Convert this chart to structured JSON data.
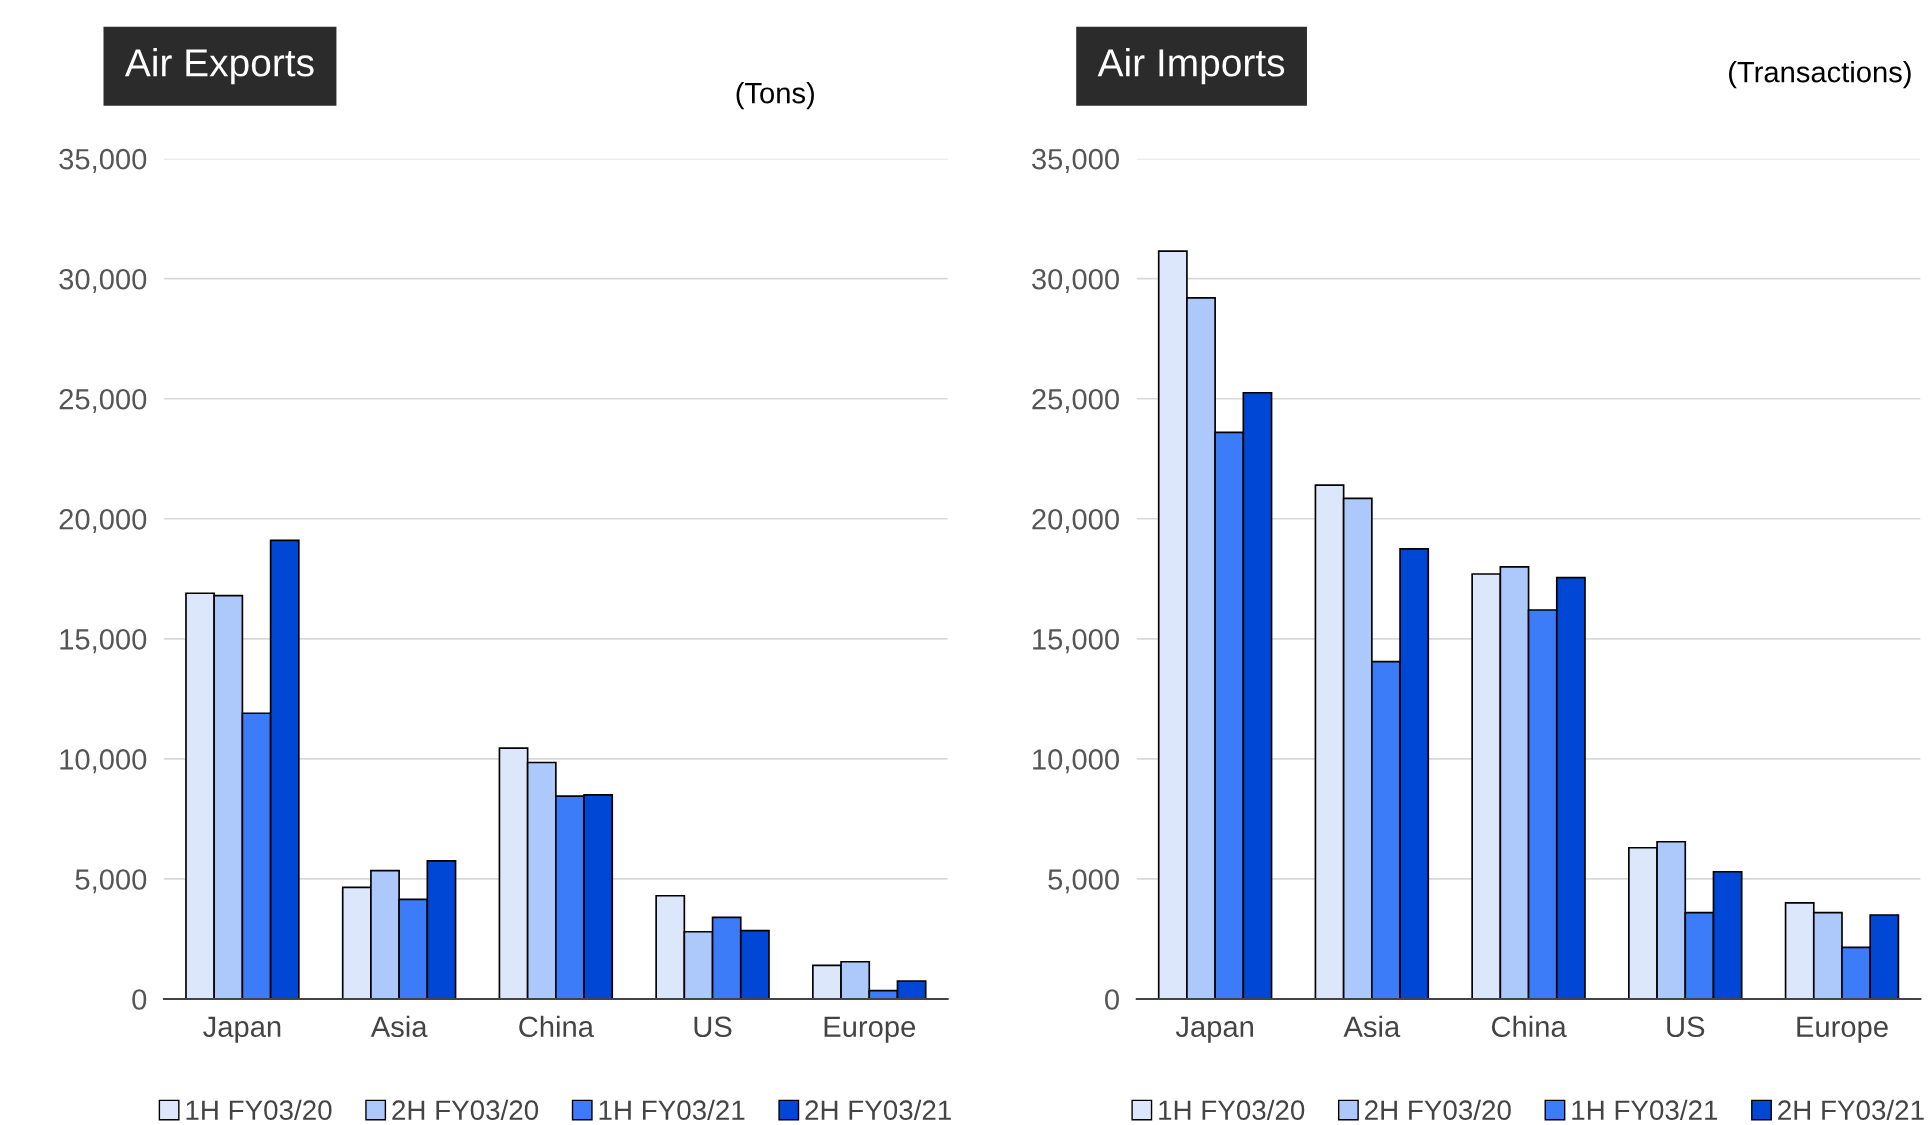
{
  "chart_data": [
    {
      "type": "bar",
      "title": "Air Exports",
      "annotations": [
        "(Tons)"
      ],
      "categories": [
        "Japan",
        "Asia",
        "China",
        "US",
        "Europe"
      ],
      "ylim": [
        0,
        35000
      ],
      "yticks": [
        {
          "value": 0,
          "label": "0"
        },
        {
          "value": 5000,
          "label": "5,000"
        },
        {
          "value": 10000,
          "label": "10,000"
        },
        {
          "value": 15000,
          "label": "15,000"
        },
        {
          "value": 20000,
          "label": "20,000"
        },
        {
          "value": 25000,
          "label": "25,000"
        },
        {
          "value": 30000,
          "label": "30,000"
        },
        {
          "value": 35000,
          "label": "35,000"
        }
      ],
      "grid": "y",
      "legend": "bottom",
      "series": [
        {
          "name": "1H FY03/20",
          "color": "#dde7fc",
          "values": [
            16900,
            4650,
            10450,
            4300,
            1400
          ]
        },
        {
          "name": "2H FY03/20",
          "color": "#adc8fb",
          "values": [
            16800,
            5350,
            9850,
            2800,
            1550
          ]
        },
        {
          "name": "1H FY03/21",
          "color": "#3c7cf8",
          "values": [
            11900,
            4150,
            8450,
            3400,
            350
          ]
        },
        {
          "name": "2H FY03/21",
          "color": "#0047d6",
          "values": [
            19100,
            5750,
            8500,
            2850,
            750
          ]
        }
      ]
    },
    {
      "type": "bar",
      "title": "Air Imports",
      "annotations": [
        "(Transactions)"
      ],
      "categories": [
        "Japan",
        "Asia",
        "China",
        "US",
        "Europe"
      ],
      "ylim": [
        0,
        35000
      ],
      "yticks": [
        {
          "value": 0,
          "label": "0"
        },
        {
          "value": 5000,
          "label": "5,000"
        },
        {
          "value": 10000,
          "label": "10,000"
        },
        {
          "value": 15000,
          "label": "15,000"
        },
        {
          "value": 20000,
          "label": "20,000"
        },
        {
          "value": 25000,
          "label": "25,000"
        },
        {
          "value": 30000,
          "label": "30,000"
        },
        {
          "value": 35000,
          "label": "35,000"
        }
      ],
      "grid": "y",
      "legend": "bottom",
      "series": [
        {
          "name": "1H FY03/20",
          "color": "#dde7fc",
          "values": [
            31150,
            21400,
            17700,
            6300,
            4000
          ]
        },
        {
          "name": "2H FY03/20",
          "color": "#adc8fb",
          "values": [
            29200,
            20850,
            18000,
            6550,
            3600
          ]
        },
        {
          "name": "1H FY03/21",
          "color": "#3c7cf8",
          "values": [
            23600,
            14050,
            16200,
            3600,
            2150
          ]
        },
        {
          "name": "2H FY03/21",
          "color": "#0047d6",
          "values": [
            25250,
            18750,
            17550,
            5300,
            3500
          ]
        }
      ]
    }
  ]
}
